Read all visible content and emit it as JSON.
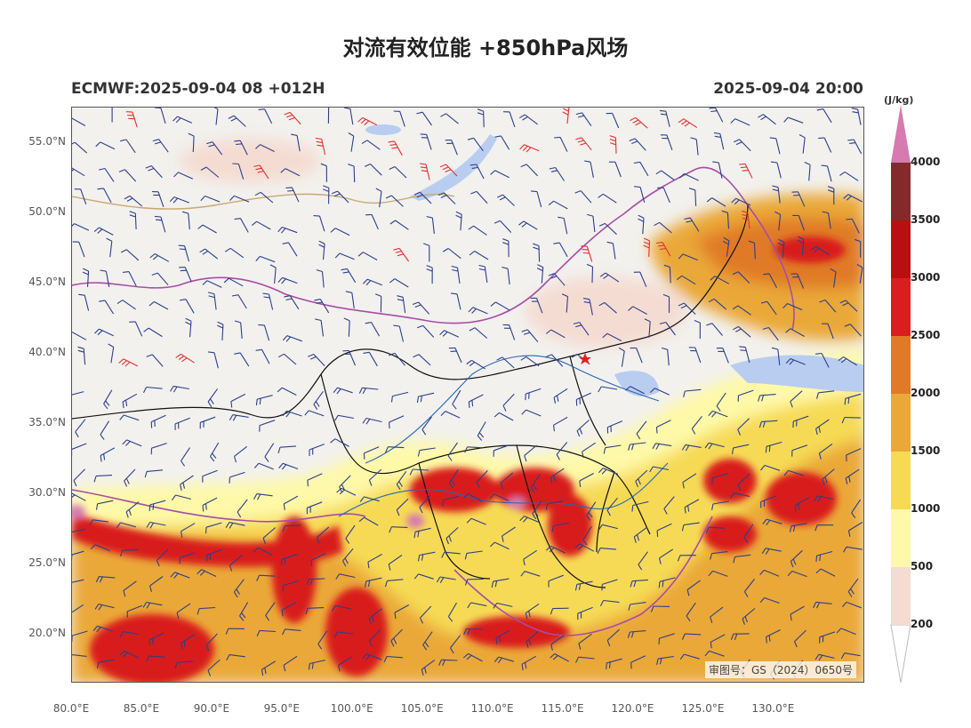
{
  "title": "对流有效位能 +850hPa风场",
  "subtitle_left": "ECMWF:2025-09-04 08 +012H",
  "subtitle_right": "2025-09-04 20:00",
  "map": {
    "lat_min": 16.5,
    "lat_max": 57.5,
    "lon_min": 80.0,
    "lon_max": 136.5,
    "lat_ticks": [
      "55.0°N",
      "50.0°N",
      "45.0°N",
      "40.0°N",
      "35.0°N",
      "30.0°N",
      "25.0°N",
      "20.0°N"
    ],
    "lat_values": [
      55,
      50,
      45,
      40,
      35,
      30,
      25,
      20
    ],
    "lon_ticks": [
      "80.0°E",
      "85.0°E",
      "90.0°E",
      "95.0°E",
      "100.0°E",
      "105.0°E",
      "110.0°E",
      "115.0°E",
      "120.0°E",
      "125.0°E",
      "130.0°E"
    ],
    "lon_values": [
      80,
      85,
      90,
      95,
      100,
      105,
      110,
      115,
      120,
      125,
      130
    ],
    "approval_text": "审图号：GS（2024）0650号",
    "capital_marker": "red-star-icon"
  },
  "colorbar": {
    "unit": "(J/kg)",
    "levels": [
      "200",
      "500",
      "1000",
      "1500",
      "2000",
      "2500",
      "3000",
      "3500",
      "4000"
    ],
    "level_values": [
      200,
      500,
      1000,
      1500,
      2000,
      2500,
      3000,
      3500,
      4000
    ],
    "colors": [
      "#f5dcd2",
      "#fef9a8",
      "#f6da54",
      "#eaa838",
      "#e07a28",
      "#d81e1e",
      "#b81010",
      "#852a2a",
      "#d67ab0"
    ]
  }
}
